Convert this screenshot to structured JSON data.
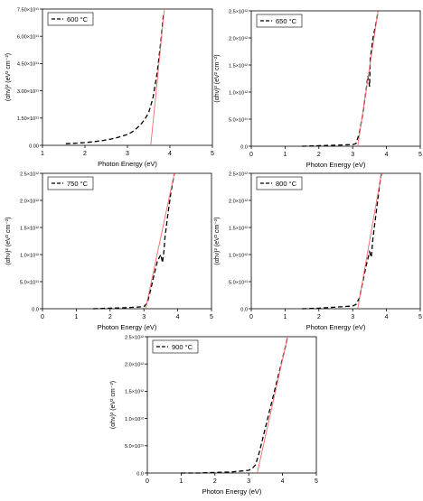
{
  "figure": {
    "panel_layout": "three rows: two panels, two panels, one centered panel"
  },
  "chart_data": [
    {
      "type": "line",
      "xlabel": "Photon Energy (eV)",
      "ylabel": "(αhν)²",
      "ylabel_unit": "(eV² cm⁻²)",
      "xlim": [
        1,
        5
      ],
      "ylim": [
        0,
        750000000000.0
      ],
      "xticks": [
        "1",
        "2",
        "3",
        "4",
        "5"
      ],
      "yticks": [
        "0.00",
        "1.50×10¹¹",
        "3.00×10¹¹",
        "4.50×10¹¹",
        "6.00×10¹¹",
        "7.50×10¹¹"
      ],
      "ytick_values": [
        0,
        150000000000.0,
        300000000000.0,
        450000000000.0,
        600000000000.0,
        750000000000.0
      ],
      "legend": "600 °C",
      "series": [
        {
          "name": "600 °C",
          "style": "dashed",
          "color": "#000000",
          "x": [
            1.55,
            1.8,
            2.0,
            2.2,
            2.4,
            2.6,
            2.8,
            3.0,
            3.1,
            3.2,
            3.3,
            3.4,
            3.5,
            3.6,
            3.7,
            3.8,
            3.85
          ],
          "y": [
            9000000000.0,
            12000000000.0,
            15000000000.0,
            20000000000.0,
            26000000000.0,
            34000000000.0,
            45000000000.0,
            60000000000.0,
            72000000000.0,
            90000000000.0,
            112000000000.0,
            140000000000.0,
            180000000000.0,
            260000000000.0,
            400000000000.0,
            600000000000.0,
            730000000000.0
          ]
        },
        {
          "name": "",
          "style": "solid",
          "color": "#ff6666",
          "x": [
            3.55,
            3.87
          ],
          "y": [
            0,
            750000000000.0
          ]
        }
      ]
    },
    {
      "type": "line",
      "xlabel": "Photon Energy (eV)",
      "ylabel": "(αhν)²",
      "ylabel_unit": "(eV² cm⁻²)",
      "xlim": [
        0,
        5
      ],
      "ylim": [
        0,
        2500000000000.0
      ],
      "xticks": [
        "0",
        "1",
        "2",
        "3",
        "4",
        "5"
      ],
      "yticks": [
        "0.0",
        "5.0×10¹¹",
        "1.0×10¹²",
        "1.5×10¹²",
        "2.0×10¹²",
        "2.5×10¹²"
      ],
      "ytick_values": [
        0,
        500000000000.0,
        1000000000000.0,
        1500000000000.0,
        2000000000000.0,
        2500000000000.0
      ],
      "legend": "650 °C",
      "series": [
        {
          "name": "650 °C",
          "style": "dashed",
          "color": "#000000",
          "x": [
            1.5,
            2.0,
            2.5,
            3.0,
            3.1,
            3.2,
            3.3,
            3.4,
            3.45,
            3.5,
            3.52,
            3.55,
            3.6,
            3.7,
            3.75
          ],
          "y": [
            0.0,
            10000000000.0,
            20000000000.0,
            30000000000.0,
            50000000000.0,
            250000000000.0,
            600000000000.0,
            1050000000000.0,
            1300000000000.0,
            1100000000000.0,
            1600000000000.0,
            1750000000000.0,
            2000000000000.0,
            2300000000000.0,
            2500000000000.0
          ]
        },
        {
          "name": "",
          "style": "solid",
          "color": "#ff6666",
          "x": [
            3.15,
            3.75
          ],
          "y": [
            0,
            2500000000000.0
          ]
        }
      ]
    },
    {
      "type": "line",
      "xlabel": "Photon Energy (eV)",
      "ylabel": "(αhν)²",
      "ylabel_unit": "(eV² cm⁻²)",
      "xlim": [
        0,
        5
      ],
      "ylim": [
        0,
        2500000000000.0
      ],
      "xticks": [
        "0",
        "1",
        "2",
        "3",
        "4",
        "5"
      ],
      "yticks": [
        "0.0",
        "5.0×10¹¹",
        "1.0×10¹²",
        "1.5×10¹²",
        "2.0×10¹²",
        "2.5×10¹²"
      ],
      "ytick_values": [
        0,
        500000000000.0,
        1000000000000.0,
        1500000000000.0,
        2000000000000.0,
        2500000000000.0
      ],
      "legend": "750 °C",
      "series": [
        {
          "name": "750 °C",
          "style": "dashed",
          "color": "#000000",
          "x": [
            1.5,
            2.0,
            2.5,
            2.8,
            3.0,
            3.1,
            3.2,
            3.3,
            3.4,
            3.5,
            3.55,
            3.6,
            3.62,
            3.7,
            3.8,
            3.9
          ],
          "y": [
            0.0,
            10000000000.0,
            20000000000.0,
            30000000000.0,
            40000000000.0,
            100000000000.0,
            350000000000.0,
            620000000000.0,
            880000000000.0,
            1000000000000.0,
            850000000000.0,
            1100000000000.0,
            1300000000000.0,
            1700000000000.0,
            2150000000000.0,
            2500000000000.0
          ]
        },
        {
          "name": "",
          "style": "solid",
          "color": "#ff6666",
          "x": [
            3.05,
            3.9
          ],
          "y": [
            0,
            2500000000000.0
          ]
        }
      ]
    },
    {
      "type": "line",
      "xlabel": "Photon Energy (eV)",
      "ylabel": "(αhν)²",
      "ylabel_unit": "(eV² cm⁻²)",
      "xlim": [
        0,
        5
      ],
      "ylim": [
        0,
        2500000000000.0
      ],
      "xticks": [
        "0",
        "1",
        "2",
        "3",
        "4",
        "5"
      ],
      "yticks": [
        "0.0",
        "5.0×10¹¹",
        "1.0×10¹²",
        "1.5×10¹²",
        "2.0×10¹²",
        "2.5×10¹²"
      ],
      "ytick_values": [
        0,
        500000000000.0,
        1000000000000.0,
        1500000000000.0,
        2000000000000.0,
        2500000000000.0
      ],
      "legend": "800 °C",
      "series": [
        {
          "name": "800 °C",
          "style": "dashed",
          "color": "#000000",
          "x": [
            1.5,
            2.0,
            2.5,
            3.0,
            3.1,
            3.2,
            3.3,
            3.4,
            3.5,
            3.55,
            3.6,
            3.7,
            3.8,
            3.85
          ],
          "y": [
            0.0,
            10000000000.0,
            30000000000.0,
            50000000000.0,
            80000000000.0,
            200000000000.0,
            500000000000.0,
            800000000000.0,
            1050000000000.0,
            950000000000.0,
            1300000000000.0,
            1800000000000.0,
            2300000000000.0,
            2500000000000.0
          ]
        },
        {
          "name": "",
          "style": "solid",
          "color": "#ff6666",
          "x": [
            3.15,
            3.85
          ],
          "y": [
            0,
            2500000000000.0
          ]
        }
      ]
    },
    {
      "type": "line",
      "xlabel": "Photon Energy (eV)",
      "ylabel": "(αhν)²",
      "ylabel_unit": "(eV² cm⁻²)",
      "xlim": [
        0,
        5
      ],
      "ylim": [
        0,
        2500000000000.0
      ],
      "xticks": [
        "0",
        "1",
        "2",
        "3",
        "4",
        "5"
      ],
      "yticks": [
        "0.0",
        "5.0×10¹¹",
        "1.0×10¹²",
        "1.5×10¹²",
        "2.0×10¹²",
        "2.5×10¹²"
      ],
      "ytick_values": [
        0,
        500000000000.0,
        1000000000000.0,
        1500000000000.0,
        2000000000000.0,
        2500000000000.0
      ],
      "legend": "900 °C",
      "series": [
        {
          "name": "900 °C",
          "style": "dashed",
          "color": "#000000",
          "x": [
            1.0,
            1.5,
            2.0,
            2.5,
            3.0,
            3.1,
            3.2,
            3.3,
            3.4,
            3.5,
            3.6,
            3.7,
            3.8,
            3.9,
            4.0,
            4.1,
            4.15
          ],
          "y": [
            0.0,
            0.0,
            10000000000.0,
            20000000000.0,
            50000000000.0,
            80000000000.0,
            150000000000.0,
            350000000000.0,
            600000000000.0,
            850000000000.0,
            1100000000000.0,
            1350000000000.0,
            1600000000000.0,
            1850000000000.0,
            2100000000000.0,
            2350000000000.0,
            2500000000000.0
          ]
        },
        {
          "name": "",
          "style": "solid",
          "color": "#ff6666",
          "x": [
            3.25,
            4.15
          ],
          "y": [
            0,
            2500000000000.0
          ]
        }
      ]
    }
  ]
}
